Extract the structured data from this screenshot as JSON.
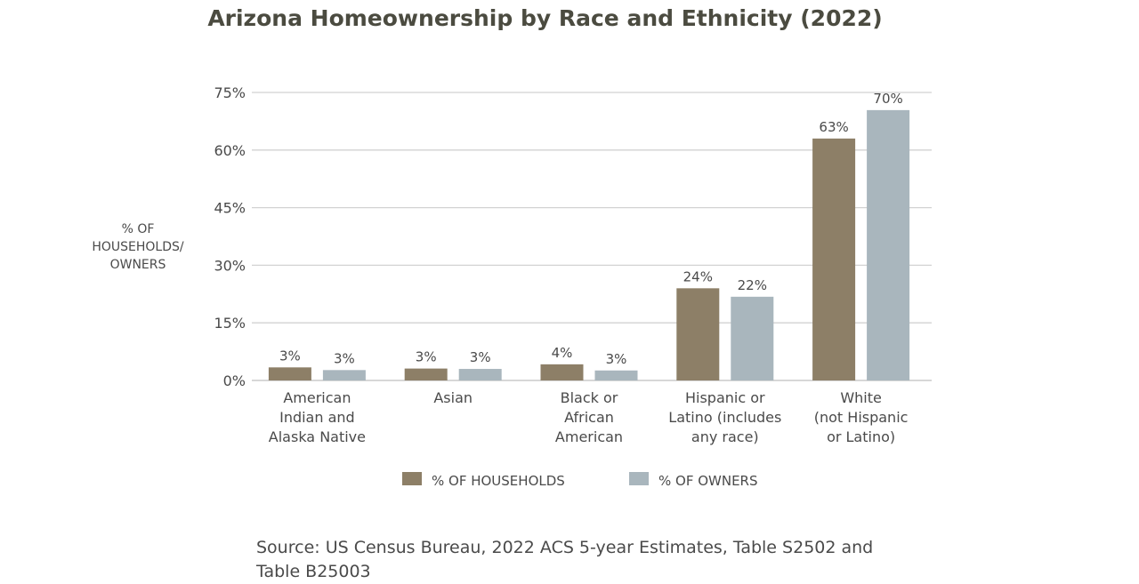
{
  "chart_data": {
    "type": "bar",
    "title": "Arizona Homeownership by Race and Ethnicity (2022)",
    "ylabel": [
      "% OF",
      "HOUSEHOLDS/",
      "OWNERS"
    ],
    "xlabel": "",
    "ylim": [
      0,
      75
    ],
    "yticks": [
      0,
      15,
      30,
      45,
      60,
      75
    ],
    "ytick_labels": [
      "0%",
      "15%",
      "30%",
      "45%",
      "60%",
      "75%"
    ],
    "grid": true,
    "legend_position": "bottom",
    "categories": [
      [
        "American",
        "Indian and",
        "Alaska Native"
      ],
      [
        "Asian"
      ],
      [
        "Black or",
        "African",
        "American"
      ],
      [
        "Hispanic or",
        "Latino (includes",
        "any race)"
      ],
      [
        "White",
        "(not Hispanic",
        "or Latino)"
      ]
    ],
    "series": [
      {
        "name": "% OF HOUSEHOLDS",
        "color": "#8d7f67",
        "values": [
          3.4,
          3.1,
          4.2,
          24,
          63
        ],
        "labels": [
          "3%",
          "3%",
          "4%",
          "24%",
          "63%"
        ]
      },
      {
        "name": "% OF OWNERS",
        "color": "#a9b6bd",
        "values": [
          2.7,
          3.0,
          2.6,
          21.8,
          70.4
        ],
        "labels": [
          "3%",
          "3%",
          "3%",
          "22%",
          "70%"
        ]
      }
    ]
  },
  "source": {
    "line1": "Source: US Census Bureau, 2022 ACS 5-year Estimates, Table S2502 and",
    "line2": "Table B25003"
  }
}
